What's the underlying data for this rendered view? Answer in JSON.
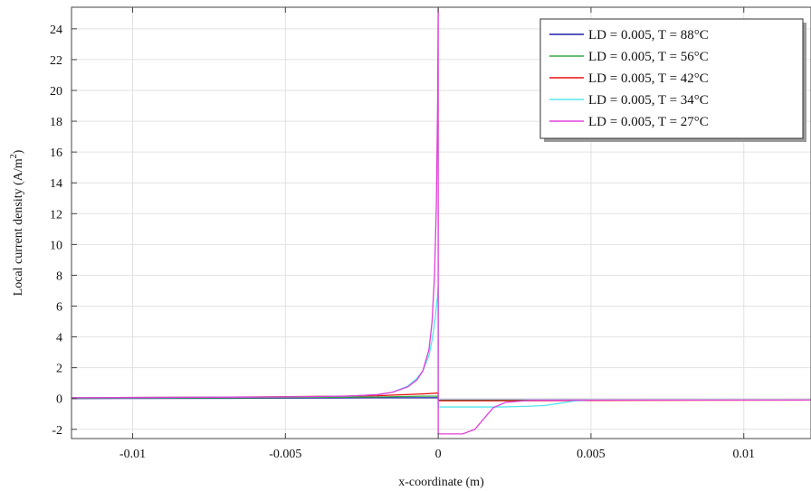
{
  "chart_data": {
    "type": "line",
    "xlabel": "x-coordinate (m)",
    "ylabel": "Local current density (A/m",
    "ylabel_sup": "2",
    "ylabel_close": ")",
    "xlim": [
      -0.012,
      0.0122
    ],
    "ylim": [
      -2.6,
      25.4
    ],
    "xticks": [
      -0.01,
      -0.005,
      0,
      0.005,
      0.01
    ],
    "xtick_labels": [
      "-0.01",
      "-0.005",
      "0",
      "0.005",
      "0.01"
    ],
    "yticks": [
      -2,
      0,
      2,
      4,
      6,
      8,
      10,
      12,
      14,
      16,
      18,
      20,
      22,
      24
    ],
    "ytick_labels": [
      "-2",
      "0",
      "2",
      "4",
      "6",
      "8",
      "10",
      "12",
      "14",
      "16",
      "18",
      "20",
      "22",
      "24"
    ],
    "grid": true,
    "legend_position": "top-right",
    "series": [
      {
        "name": "LD = 0.005, T = 88°C",
        "color": "#1f1fa8",
        "points": [
          [
            -0.012,
            0.0
          ],
          [
            -0.006,
            0.02
          ],
          [
            -0.002,
            0.05
          ],
          [
            -0.0005,
            0.05
          ],
          [
            0.0,
            0.05
          ],
          [
            0.0,
            -0.1
          ],
          [
            0.002,
            -0.1
          ],
          [
            0.006,
            -0.1
          ],
          [
            0.0122,
            -0.1
          ]
        ]
      },
      {
        "name": "LD = 0.005, T = 56°C",
        "color": "#33aa44",
        "points": [
          [
            -0.012,
            0.02
          ],
          [
            -0.006,
            0.05
          ],
          [
            -0.002,
            0.1
          ],
          [
            -0.0005,
            0.15
          ],
          [
            0.0,
            0.15
          ],
          [
            0.0,
            -0.12
          ],
          [
            0.002,
            -0.12
          ],
          [
            0.006,
            -0.1
          ],
          [
            0.0122,
            -0.1
          ]
        ]
      },
      {
        "name": "LD = 0.005, T = 42°C",
        "color": "#e81010",
        "points": [
          [
            -0.012,
            0.05
          ],
          [
            -0.006,
            0.1
          ],
          [
            -0.002,
            0.18
          ],
          [
            -0.0005,
            0.3
          ],
          [
            0.0,
            0.35
          ],
          [
            0.0,
            -0.15
          ],
          [
            0.002,
            -0.15
          ],
          [
            0.006,
            -0.12
          ],
          [
            0.0122,
            -0.1
          ]
        ]
      },
      {
        "name": "LD = 0.005, T = 34°C",
        "color": "#55e5f0",
        "points": [
          [
            -0.012,
            0.05
          ],
          [
            -0.008,
            0.08
          ],
          [
            -0.005,
            0.1
          ],
          [
            -0.003,
            0.15
          ],
          [
            -0.002,
            0.25
          ],
          [
            -0.0015,
            0.4
          ],
          [
            -0.001,
            0.8
          ],
          [
            -0.0007,
            1.3
          ],
          [
            -0.0005,
            1.8
          ],
          [
            -0.0003,
            2.8
          ],
          [
            -0.0002,
            3.8
          ],
          [
            -0.0001,
            5.2
          ],
          [
            -3e-05,
            6.5
          ],
          [
            0.0,
            7.3
          ],
          [
            0.0,
            -0.55
          ],
          [
            0.002,
            -0.55
          ],
          [
            0.003,
            -0.5
          ],
          [
            0.0035,
            -0.45
          ],
          [
            0.004,
            -0.3
          ],
          [
            0.0045,
            -0.15
          ],
          [
            0.005,
            -0.1
          ],
          [
            0.0122,
            -0.1
          ]
        ]
      },
      {
        "name": "LD = 0.005, T = 27°C",
        "color": "#e040d8",
        "points": [
          [
            -0.012,
            0.05
          ],
          [
            -0.008,
            0.08
          ],
          [
            -0.005,
            0.1
          ],
          [
            -0.003,
            0.15
          ],
          [
            -0.002,
            0.25
          ],
          [
            -0.0015,
            0.4
          ],
          [
            -0.001,
            0.75
          ],
          [
            -0.0007,
            1.2
          ],
          [
            -0.0005,
            1.8
          ],
          [
            -0.0003,
            3.2
          ],
          [
            -0.0002,
            5.0
          ],
          [
            -0.00012,
            8.0
          ],
          [
            -6e-05,
            12.5
          ],
          [
            -2e-05,
            19.0
          ],
          [
            0.0,
            25.4
          ],
          [
            0.0,
            -2.3
          ],
          [
            0.0008,
            -2.3
          ],
          [
            0.0012,
            -2.0
          ],
          [
            0.0015,
            -1.3
          ],
          [
            0.0018,
            -0.6
          ],
          [
            0.0022,
            -0.25
          ],
          [
            0.003,
            -0.12
          ],
          [
            0.006,
            -0.1
          ],
          [
            0.0122,
            -0.1
          ]
        ]
      }
    ]
  }
}
